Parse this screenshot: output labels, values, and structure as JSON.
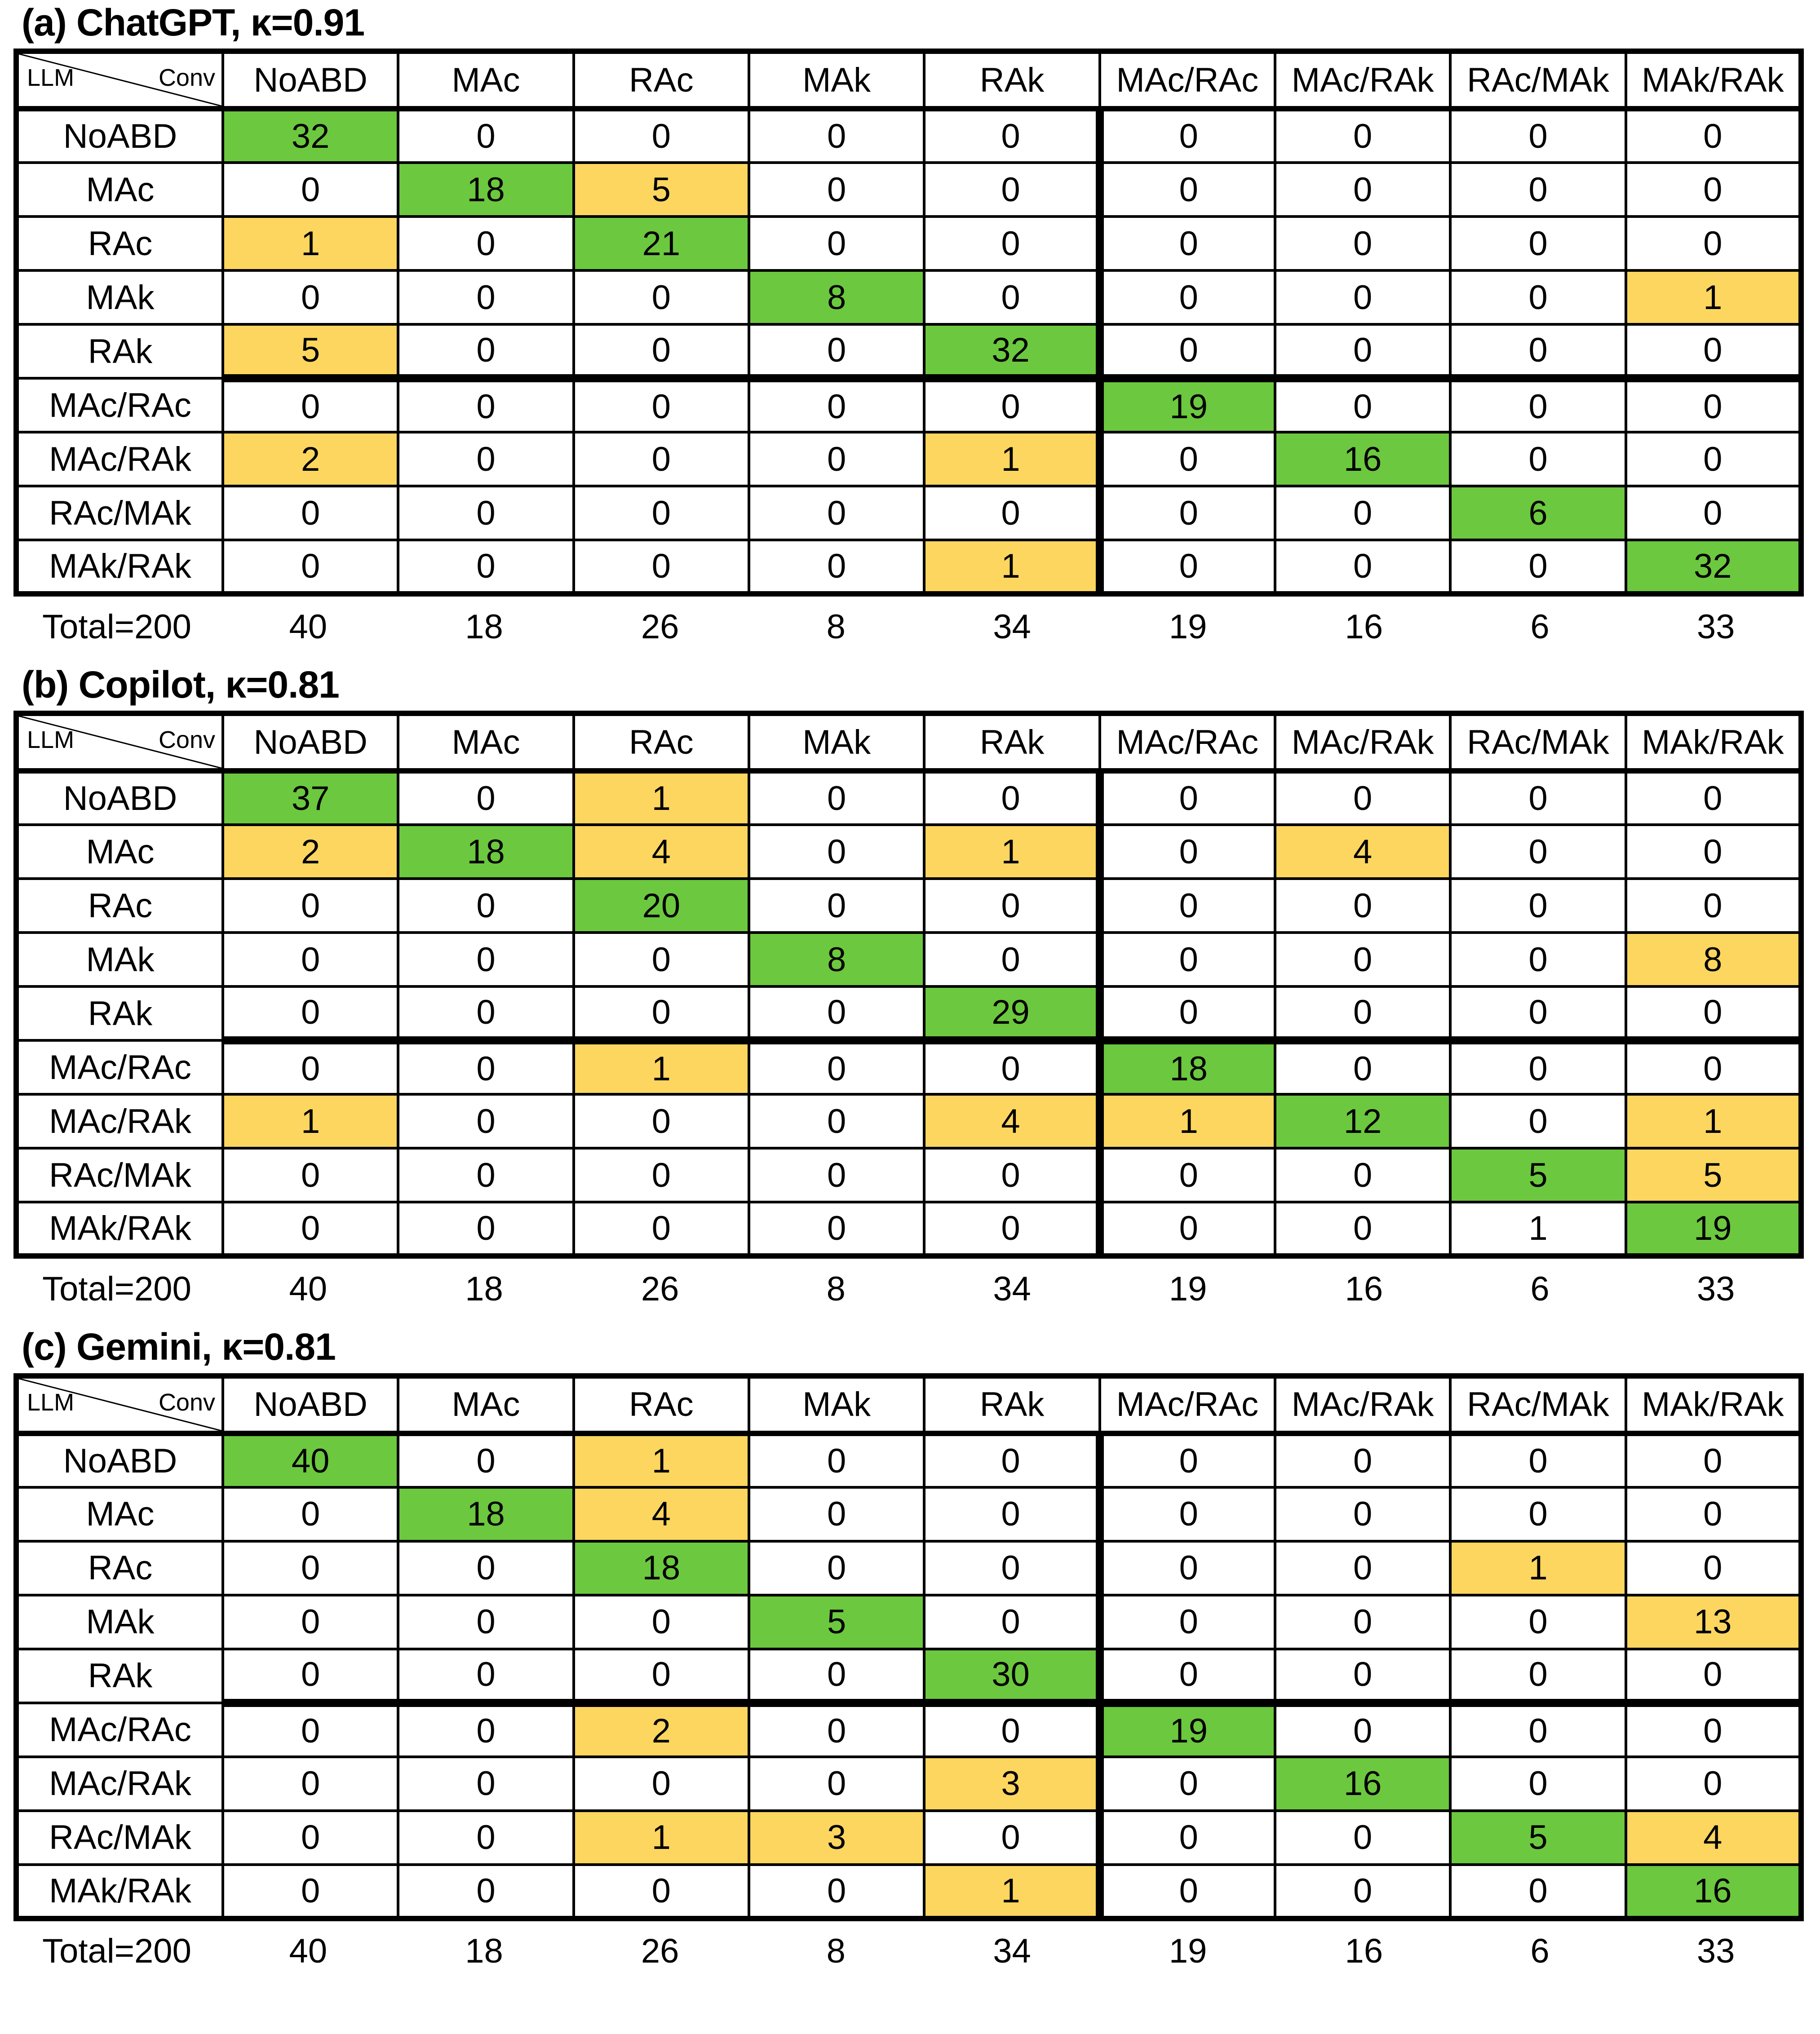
{
  "colors": {
    "green": "#6cc83e",
    "yellow": "#fdd65f",
    "border": "#000000",
    "background": "#ffffff"
  },
  "corner": {
    "bottom_left": "LLM",
    "top_right": "Conv"
  },
  "chart_data": [
    {
      "type": "heatmap",
      "title": "(a) ChatGPT, κ=0.91",
      "model": "ChatGPT",
      "kappa": "0.91",
      "x_label": "Conv",
      "y_label": "LLM",
      "columns": [
        "NoABD",
        "MAc",
        "RAc",
        "MAk",
        "RAk",
        "MAc/RAc",
        "MAc/RAk",
        "RAc/MAk",
        "MAk/RAk"
      ],
      "rows": [
        "NoABD",
        "MAc",
        "RAc",
        "MAk",
        "RAk",
        "MAc/RAc",
        "MAc/RAk",
        "RAc/MAk",
        "MAk/RAk"
      ],
      "values": [
        [
          32,
          0,
          0,
          0,
          0,
          0,
          0,
          0,
          0
        ],
        [
          0,
          18,
          5,
          0,
          0,
          0,
          0,
          0,
          0
        ],
        [
          1,
          0,
          21,
          0,
          0,
          0,
          0,
          0,
          0
        ],
        [
          0,
          0,
          0,
          8,
          0,
          0,
          0,
          0,
          1
        ],
        [
          5,
          0,
          0,
          0,
          32,
          0,
          0,
          0,
          0
        ],
        [
          0,
          0,
          0,
          0,
          0,
          19,
          0,
          0,
          0
        ],
        [
          2,
          0,
          0,
          0,
          1,
          0,
          16,
          0,
          0
        ],
        [
          0,
          0,
          0,
          0,
          0,
          0,
          0,
          6,
          0
        ],
        [
          0,
          0,
          0,
          0,
          1,
          0,
          0,
          0,
          32
        ]
      ],
      "cell_colors": [
        [
          "G",
          "",
          "",
          "",
          "",
          "",
          "",
          "",
          ""
        ],
        [
          "",
          "G",
          "Y",
          "",
          "",
          "",
          "",
          "",
          ""
        ],
        [
          "Y",
          "",
          "G",
          "",
          "",
          "",
          "",
          "",
          ""
        ],
        [
          "",
          "",
          "",
          "G",
          "",
          "",
          "",
          "",
          "Y"
        ],
        [
          "Y",
          "",
          "",
          "",
          "G",
          "",
          "",
          "",
          ""
        ],
        [
          "",
          "",
          "",
          "",
          "",
          "G",
          "",
          "",
          ""
        ],
        [
          "Y",
          "",
          "",
          "",
          "Y",
          "",
          "G",
          "",
          ""
        ],
        [
          "",
          "",
          "",
          "",
          "",
          "",
          "",
          "G",
          ""
        ],
        [
          "",
          "",
          "",
          "",
          "Y",
          "",
          "",
          "",
          "G"
        ]
      ],
      "total_label": "Total=200",
      "column_totals": [
        40,
        18,
        26,
        8,
        34,
        19,
        16,
        6,
        33
      ]
    },
    {
      "type": "heatmap",
      "title": "(b) Copilot, κ=0.81",
      "model": "Copilot",
      "kappa": "0.81",
      "x_label": "Conv",
      "y_label": "LLM",
      "columns": [
        "NoABD",
        "MAc",
        "RAc",
        "MAk",
        "RAk",
        "MAc/RAc",
        "MAc/RAk",
        "RAc/MAk",
        "MAk/RAk"
      ],
      "rows": [
        "NoABD",
        "MAc",
        "RAc",
        "MAk",
        "RAk",
        "MAc/RAc",
        "MAc/RAk",
        "RAc/MAk",
        "MAk/RAk"
      ],
      "values": [
        [
          37,
          0,
          1,
          0,
          0,
          0,
          0,
          0,
          0
        ],
        [
          2,
          18,
          4,
          0,
          1,
          0,
          4,
          0,
          0
        ],
        [
          0,
          0,
          20,
          0,
          0,
          0,
          0,
          0,
          0
        ],
        [
          0,
          0,
          0,
          8,
          0,
          0,
          0,
          0,
          8
        ],
        [
          0,
          0,
          0,
          0,
          29,
          0,
          0,
          0,
          0
        ],
        [
          0,
          0,
          1,
          0,
          0,
          18,
          0,
          0,
          0
        ],
        [
          1,
          0,
          0,
          0,
          4,
          1,
          12,
          0,
          1
        ],
        [
          0,
          0,
          0,
          0,
          0,
          0,
          0,
          5,
          5
        ],
        [
          0,
          0,
          0,
          0,
          0,
          0,
          0,
          1,
          19
        ]
      ],
      "cell_colors": [
        [
          "G",
          "",
          "Y",
          "",
          "",
          "",
          "",
          "",
          ""
        ],
        [
          "Y",
          "G",
          "Y",
          "",
          "Y",
          "",
          "Y",
          "",
          ""
        ],
        [
          "",
          "",
          "G",
          "",
          "",
          "",
          "",
          "",
          ""
        ],
        [
          "",
          "",
          "",
          "G",
          "",
          "",
          "",
          "",
          "Y"
        ],
        [
          "",
          "",
          "",
          "",
          "G",
          "",
          "",
          "",
          ""
        ],
        [
          "",
          "",
          "Y",
          "",
          "",
          "G",
          "",
          "",
          ""
        ],
        [
          "Y",
          "",
          "",
          "",
          "Y",
          "Y",
          "G",
          "",
          "Y"
        ],
        [
          "",
          "",
          "",
          "",
          "",
          "",
          "",
          "G",
          "Y"
        ],
        [
          "",
          "",
          "",
          "",
          "",
          "",
          "",
          "",
          "G"
        ]
      ],
      "total_label": "Total=200",
      "column_totals": [
        40,
        18,
        26,
        8,
        34,
        19,
        16,
        6,
        33
      ]
    },
    {
      "type": "heatmap",
      "title": "(c) Gemini, κ=0.81",
      "model": "Gemini",
      "kappa": "0.81",
      "x_label": "Conv",
      "y_label": "LLM",
      "columns": [
        "NoABD",
        "MAc",
        "RAc",
        "MAk",
        "RAk",
        "MAc/RAc",
        "MAc/RAk",
        "RAc/MAk",
        "MAk/RAk"
      ],
      "rows": [
        "NoABD",
        "MAc",
        "RAc",
        "MAk",
        "RAk",
        "MAc/RAc",
        "MAc/RAk",
        "RAc/MAk",
        "MAk/RAk"
      ],
      "values": [
        [
          40,
          0,
          1,
          0,
          0,
          0,
          0,
          0,
          0
        ],
        [
          0,
          18,
          4,
          0,
          0,
          0,
          0,
          0,
          0
        ],
        [
          0,
          0,
          18,
          0,
          0,
          0,
          0,
          1,
          0
        ],
        [
          0,
          0,
          0,
          5,
          0,
          0,
          0,
          0,
          13
        ],
        [
          0,
          0,
          0,
          0,
          30,
          0,
          0,
          0,
          0
        ],
        [
          0,
          0,
          2,
          0,
          0,
          19,
          0,
          0,
          0
        ],
        [
          0,
          0,
          0,
          0,
          3,
          0,
          16,
          0,
          0
        ],
        [
          0,
          0,
          1,
          3,
          0,
          0,
          0,
          5,
          4
        ],
        [
          0,
          0,
          0,
          0,
          1,
          0,
          0,
          0,
          16
        ]
      ],
      "cell_colors": [
        [
          "G",
          "",
          "Y",
          "",
          "",
          "",
          "",
          "",
          ""
        ],
        [
          "",
          "G",
          "Y",
          "",
          "",
          "",
          "",
          "",
          ""
        ],
        [
          "",
          "",
          "G",
          "",
          "",
          "",
          "",
          "Y",
          ""
        ],
        [
          "",
          "",
          "",
          "G",
          "",
          "",
          "",
          "",
          "Y"
        ],
        [
          "",
          "",
          "",
          "",
          "G",
          "",
          "",
          "",
          ""
        ],
        [
          "",
          "",
          "Y",
          "",
          "",
          "G",
          "",
          "",
          ""
        ],
        [
          "",
          "",
          "",
          "",
          "Y",
          "",
          "G",
          "",
          ""
        ],
        [
          "",
          "",
          "Y",
          "Y",
          "",
          "",
          "",
          "G",
          "Y"
        ],
        [
          "",
          "",
          "",
          "",
          "Y",
          "",
          "",
          "",
          "G"
        ]
      ],
      "total_label": "Total=200",
      "column_totals": [
        40,
        18,
        26,
        8,
        34,
        19,
        16,
        6,
        33
      ]
    }
  ]
}
